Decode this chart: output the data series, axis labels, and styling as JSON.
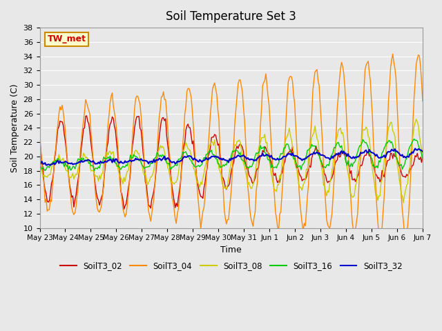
{
  "title": "Soil Temperature Set 3",
  "xlabel": "Time",
  "ylabel": "Soil Temperature (C)",
  "ylim": [
    10,
    38
  ],
  "yticks": [
    10,
    12,
    14,
    16,
    18,
    20,
    22,
    24,
    26,
    28,
    30,
    32,
    34,
    36,
    38
  ],
  "background_color": "#e8e8e8",
  "series_colors": {
    "SoilT3_02": "#cc0000",
    "SoilT3_04": "#ff8800",
    "SoilT3_08": "#cccc00",
    "SoilT3_16": "#00cc00",
    "SoilT3_32": "#0000cc"
  },
  "xtick_labels": [
    "May 23",
    "May 24",
    "May 25",
    "May 26",
    "May 27",
    "May 28",
    "May 29",
    "May 30",
    "May 31",
    "Jun 1",
    "Jun 2",
    "Jun 3",
    "Jun 4",
    "Jun 5",
    "Jun 6",
    "Jun 7"
  ],
  "annotation_text": "TW_met",
  "annotation_color": "#cc0000",
  "annotation_bg": "#ffffcc",
  "annotation_border": "#cc8800"
}
